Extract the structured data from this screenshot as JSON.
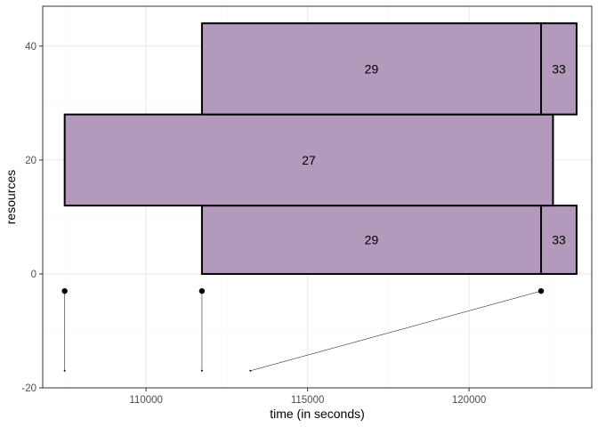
{
  "colors": {
    "fill": "#b399bb",
    "stroke": "#000000",
    "grid_major": "#ebebeb",
    "grid_minor": "#f5f5f5",
    "panel_border": "#333333",
    "segment": "#000000"
  },
  "chart_data": {
    "type": "bar",
    "title": "",
    "xlabel": "time (in seconds)",
    "ylabel": "resources",
    "xlim": [
      106800,
      123800
    ],
    "ylim": [
      -20,
      47
    ],
    "x_ticks": [
      110000,
      115000,
      120000
    ],
    "x_tick_labels": [
      "110000",
      "115000",
      "120000"
    ],
    "y_ticks": [
      -20,
      0,
      20,
      40
    ],
    "y_tick_labels": [
      "-20",
      "0",
      "20",
      "40"
    ],
    "grid": true,
    "legend": "none",
    "rects": [
      {
        "xmin": 111730,
        "xmax": 122230,
        "ymin": 0,
        "ymax": 12,
        "label": "29"
      },
      {
        "xmin": 122230,
        "xmax": 123330,
        "ymin": 0,
        "ymax": 12,
        "label": "33"
      },
      {
        "xmin": 107480,
        "xmax": 122600,
        "ymin": 12,
        "ymax": 28,
        "label": "27"
      },
      {
        "xmin": 111730,
        "xmax": 122230,
        "ymin": 28,
        "ymax": 44,
        "label": "29"
      },
      {
        "xmin": 122230,
        "xmax": 123330,
        "ymin": 28,
        "ymax": 44,
        "label": "33"
      }
    ],
    "segments": [
      {
        "x1": 107480,
        "y1": -3,
        "x2": 107480,
        "y2": -17
      },
      {
        "x1": 111730,
        "y1": -3,
        "x2": 111730,
        "y2": -17
      },
      {
        "x1": 122230,
        "y1": -3,
        "x2": 113230,
        "y2": -17
      }
    ],
    "points": [
      {
        "x": 107480,
        "y": -3
      },
      {
        "x": 111730,
        "y": -3
      },
      {
        "x": 122230,
        "y": -3
      }
    ]
  }
}
